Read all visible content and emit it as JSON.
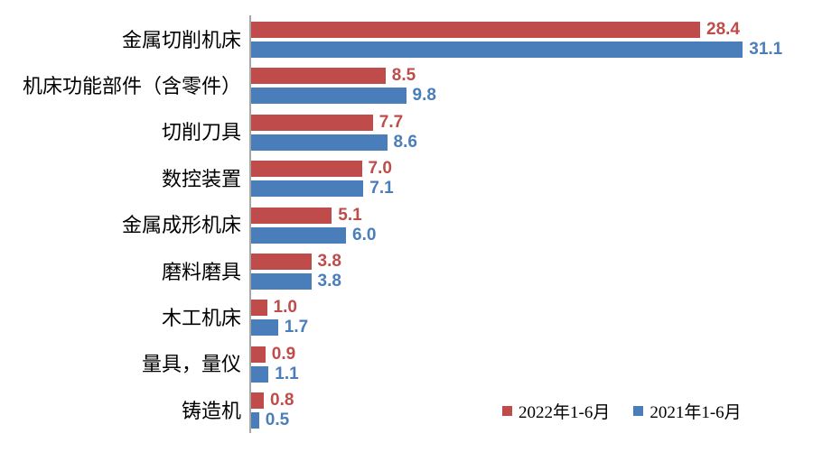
{
  "chart_data": {
    "type": "bar",
    "orientation": "horizontal",
    "title": "",
    "xlabel": "",
    "ylabel": "",
    "xlim": [
      0,
      35
    ],
    "grid": false,
    "legend_position": "bottom-right",
    "axis_line_color": "#a6a6a6",
    "value_labels_shown": true,
    "categories": [
      "金属切削机床",
      "机床功能部件（含零件）",
      "切削刀具",
      "数控装置",
      "金属成形机床",
      "磨料磨具",
      "木工机床",
      "量具，量仪",
      "铸造机"
    ],
    "series": [
      {
        "name": "2022年1-6月",
        "color": "#bf4c4a",
        "values": [
          28.4,
          8.5,
          7.7,
          7.0,
          5.1,
          3.8,
          1.0,
          0.9,
          0.8
        ]
      },
      {
        "name": "2021年1-6月",
        "color": "#4a7ebb",
        "values": [
          31.1,
          9.8,
          8.6,
          7.1,
          6.0,
          3.8,
          1.7,
          1.1,
          0.5
        ]
      }
    ]
  }
}
